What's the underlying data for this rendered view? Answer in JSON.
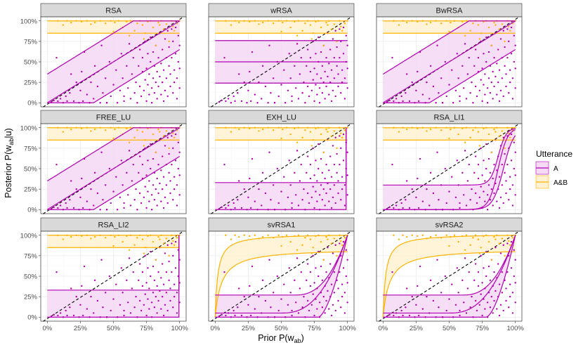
{
  "chart_data": {
    "type": "faceted-line-scatter",
    "xlabel": "Prior P(w",
    "xlabel_sub": "ab",
    "xlabel_end": ")",
    "ylabel": "Posterior P(w",
    "ylabel_sub": "ab",
    "ylabel_end": "|u)",
    "x_ticks": [
      "0%",
      "25%",
      "50%",
      "75%",
      "100%"
    ],
    "y_ticks": [
      "0%",
      "25%",
      "50%",
      "75%",
      "100%"
    ],
    "xlim": [
      0,
      1
    ],
    "ylim": [
      0,
      1
    ],
    "diagonal": "dashed identity line y = x",
    "legend": {
      "title": "Utterance",
      "position": "right",
      "entries": [
        {
          "label": "A",
          "color": "#b300b3",
          "fill": "#f5d9f5"
        },
        {
          "label": "A&B",
          "color": "#ffb300",
          "fill": "#fff1d1"
        }
      ]
    },
    "colors": {
      "A": "#b300b3",
      "AB": "#ffb300",
      "A_fill": "#f5d9f5",
      "AB_fill": "#fff1d1",
      "grid": "#ebebeb",
      "strip": "#d9d9d9"
    },
    "facets": [
      {
        "title": "RSA",
        "A": {
          "kind": "linear",
          "low": {
            "m": 1,
            "c": -0.35
          },
          "mid": {
            "m": 1,
            "c": 0
          },
          "high": {
            "m": 1,
            "c": 0.35
          }
        },
        "AB": {
          "kind": "flat",
          "lines": [
            0.85,
            1.0
          ]
        }
      },
      {
        "title": "wRSA",
        "A": {
          "kind": "flat",
          "lines": [
            0.24,
            0.5,
            0.76
          ]
        },
        "AB": {
          "kind": "flat",
          "lines": [
            0.85,
            1.0
          ]
        }
      },
      {
        "title": "BwRSA",
        "A": {
          "kind": "linear",
          "low": {
            "m": 1,
            "c": -0.35
          },
          "mid": {
            "m": 1,
            "c": 0
          },
          "high": {
            "m": 1,
            "c": 0.35
          }
        },
        "AB": {
          "kind": "flat",
          "lines": [
            0.85,
            1.0
          ]
        }
      },
      {
        "title": "FREE_LU",
        "A": {
          "kind": "linear",
          "low": {
            "m": 1,
            "c": -0.35
          },
          "mid": {
            "m": 1,
            "c": 0
          },
          "high": {
            "m": 1,
            "c": 0.35
          }
        },
        "AB": {
          "kind": "flat",
          "lines": [
            0.85,
            1.0
          ]
        }
      },
      {
        "title": "EXH_LU",
        "A": {
          "kind": "flat_jump",
          "lines": [
            0.0,
            0.33
          ],
          "jump": 0.99
        },
        "AB": {
          "kind": "flat",
          "lines": [
            0.85,
            1.0
          ]
        }
      },
      {
        "title": "RSA_LI1",
        "A": {
          "kind": "sigmoid",
          "curves": [
            {
              "base": 0.0,
              "c": 0.87,
              "s": 0.035
            },
            {
              "base": 0.0,
              "c": 0.91,
              "s": 0.04
            },
            {
              "base": 0.3,
              "c": 0.87,
              "s": 0.03
            }
          ]
        },
        "AB": {
          "kind": "flat",
          "lines": [
            0.85,
            1.0
          ]
        }
      },
      {
        "title": "RSA_LI2",
        "A": {
          "kind": "flat_jump",
          "lines": [
            0.0,
            0.33
          ],
          "jump": 0.995
        },
        "AB": {
          "kind": "flat",
          "lines": [
            0.85,
            1.0
          ]
        }
      },
      {
        "title": "svRSA1",
        "A": {
          "kind": "power",
          "curves": [
            {
              "base": 0.0,
              "start": 0.78,
              "p": 1.6
            },
            {
              "base": 0.05,
              "start": 0.5,
              "p": 2.5
            },
            {
              "base": 0.27,
              "start": 0.6,
              "p": 2.5
            }
          ]
        },
        "AB": {
          "kind": "saturating",
          "curves": [
            {
              "top": 0.8,
              "k": 0.05
            },
            {
              "top": 1.0,
              "k": 0.02
            }
          ]
        }
      },
      {
        "title": "svRSA2",
        "A": {
          "kind": "power",
          "curves": [
            {
              "base": 0.0,
              "start": 0.78,
              "p": 1.6
            },
            {
              "base": 0.05,
              "start": 0.5,
              "p": 2.5
            },
            {
              "base": 0.27,
              "start": 0.6,
              "p": 2.5
            }
          ]
        },
        "AB": {
          "kind": "saturating",
          "curves": [
            {
              "top": 0.8,
              "k": 0.05
            },
            {
              "top": 1.0,
              "k": 0.02
            }
          ]
        }
      }
    ],
    "points_A": [
      [
        0.03,
        0.01
      ],
      [
        0.05,
        0.03
      ],
      [
        0.07,
        0.55
      ],
      [
        0.08,
        0.02
      ],
      [
        0.1,
        0.05
      ],
      [
        0.12,
        0.0
      ],
      [
        0.14,
        0.08
      ],
      [
        0.15,
        0.02
      ],
      [
        0.17,
        0.12
      ],
      [
        0.18,
        0.35
      ],
      [
        0.2,
        0.02
      ],
      [
        0.22,
        0.25
      ],
      [
        0.24,
        0.0
      ],
      [
        0.25,
        0.15
      ],
      [
        0.26,
        0.38
      ],
      [
        0.27,
        0.02
      ],
      [
        0.28,
        0.62
      ],
      [
        0.3,
        0.1
      ],
      [
        0.32,
        0.0
      ],
      [
        0.33,
        0.25
      ],
      [
        0.35,
        0.05
      ],
      [
        0.36,
        0.45
      ],
      [
        0.38,
        0.2
      ],
      [
        0.4,
        0.0
      ],
      [
        0.41,
        0.7
      ],
      [
        0.42,
        0.12
      ],
      [
        0.44,
        0.3
      ],
      [
        0.45,
        0.0
      ],
      [
        0.47,
        0.5
      ],
      [
        0.48,
        0.08
      ],
      [
        0.5,
        0.22
      ],
      [
        0.52,
        0.4
      ],
      [
        0.53,
        0.0
      ],
      [
        0.55,
        0.15
      ],
      [
        0.56,
        0.6
      ],
      [
        0.57,
        0.3
      ],
      [
        0.58,
        0.02
      ],
      [
        0.6,
        0.45
      ],
      [
        0.61,
        0.18
      ],
      [
        0.62,
        0.72
      ],
      [
        0.63,
        0.05
      ],
      [
        0.64,
        0.35
      ],
      [
        0.65,
        0.55
      ],
      [
        0.66,
        0.12
      ],
      [
        0.67,
        0.25
      ],
      [
        0.68,
        0.0
      ],
      [
        0.69,
        0.45
      ],
      [
        0.7,
        0.65
      ],
      [
        0.7,
        0.2
      ],
      [
        0.71,
        0.08
      ],
      [
        0.72,
        0.38
      ],
      [
        0.72,
        0.55
      ],
      [
        0.73,
        0.15
      ],
      [
        0.74,
        0.28
      ],
      [
        0.74,
        0.75
      ],
      [
        0.75,
        0.02
      ],
      [
        0.75,
        0.42
      ],
      [
        0.76,
        0.6
      ],
      [
        0.76,
        0.22
      ],
      [
        0.77,
        0.1
      ],
      [
        0.77,
        0.35
      ],
      [
        0.78,
        0.5
      ],
      [
        0.78,
        0.8
      ],
      [
        0.79,
        0.18
      ],
      [
        0.79,
        0.0
      ],
      [
        0.8,
        0.3
      ],
      [
        0.8,
        0.62
      ],
      [
        0.81,
        0.12
      ],
      [
        0.81,
        0.45
      ],
      [
        0.82,
        0.25
      ],
      [
        0.82,
        0.7
      ],
      [
        0.83,
        0.05
      ],
      [
        0.83,
        0.38
      ],
      [
        0.84,
        0.55
      ],
      [
        0.84,
        0.2
      ],
      [
        0.85,
        0.85
      ],
      [
        0.85,
        0.32
      ],
      [
        0.86,
        0.1
      ],
      [
        0.86,
        0.48
      ],
      [
        0.87,
        0.65
      ],
      [
        0.87,
        0.25
      ],
      [
        0.88,
        0.02
      ],
      [
        0.88,
        0.4
      ],
      [
        0.89,
        0.78
      ],
      [
        0.89,
        0.15
      ],
      [
        0.9,
        0.55
      ],
      [
        0.9,
        0.3
      ],
      [
        0.91,
        0.88
      ],
      [
        0.91,
        0.08
      ],
      [
        0.92,
        0.45
      ],
      [
        0.92,
        0.68
      ],
      [
        0.93,
        0.2
      ],
      [
        0.93,
        0.35
      ],
      [
        0.94,
        0.9
      ],
      [
        0.94,
        0.55
      ],
      [
        0.95,
        0.12
      ],
      [
        0.95,
        0.75
      ],
      [
        0.96,
        0.4
      ],
      [
        0.96,
        0.25
      ],
      [
        0.97,
        0.92
      ],
      [
        0.97,
        0.6
      ],
      [
        0.98,
        0.05
      ],
      [
        0.98,
        0.3
      ],
      [
        0.99,
        0.5
      ],
      [
        0.99,
        0.82
      ],
      [
        1.0,
        0.18
      ],
      [
        1.0,
        0.42
      ],
      [
        1.0,
        0.7
      ],
      [
        0.45,
        0.0
      ],
      [
        0.58,
        0.08
      ]
    ],
    "points_AB": [
      [
        0.08,
        1.0
      ],
      [
        0.12,
        0.95
      ],
      [
        0.15,
        1.0
      ],
      [
        0.18,
        0.98
      ],
      [
        0.22,
        1.0
      ],
      [
        0.26,
        0.99
      ],
      [
        0.3,
        1.0
      ],
      [
        0.33,
        0.96
      ],
      [
        0.36,
        0.98
      ],
      [
        0.4,
        1.0
      ],
      [
        0.44,
        0.97
      ],
      [
        0.48,
        1.0
      ],
      [
        0.51,
        0.98
      ],
      [
        0.54,
        1.0
      ],
      [
        0.57,
        0.92
      ],
      [
        0.6,
        0.99
      ],
      [
        0.63,
        1.0
      ],
      [
        0.66,
        0.88
      ],
      [
        0.68,
        0.97
      ],
      [
        0.7,
        1.0
      ],
      [
        0.72,
        0.95
      ],
      [
        0.74,
        0.85
      ],
      [
        0.76,
        0.99
      ],
      [
        0.78,
        1.0
      ],
      [
        0.8,
        0.92
      ],
      [
        0.82,
        0.7
      ],
      [
        0.84,
        0.98
      ],
      [
        0.86,
        1.0
      ],
      [
        0.88,
        0.9
      ],
      [
        0.9,
        0.96
      ],
      [
        0.92,
        0.75
      ],
      [
        0.94,
        1.0
      ],
      [
        0.96,
        0.88
      ],
      [
        0.98,
        0.97
      ],
      [
        1.0,
        1.0
      ],
      [
        0.62,
        0.82
      ],
      [
        0.73,
        0.78
      ],
      [
        0.85,
        0.95
      ],
      [
        0.95,
        0.93
      ],
      [
        0.5,
        0.87
      ]
    ]
  }
}
